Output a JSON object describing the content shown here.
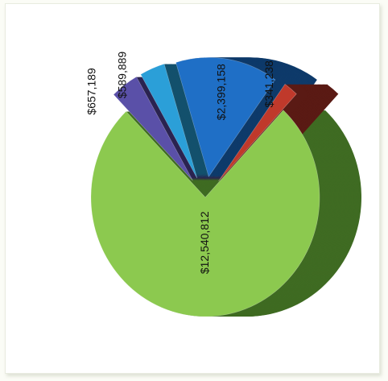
{
  "chart_data": {
    "type": "pie",
    "categories": [
      "",
      "",
      "",
      "",
      ""
    ],
    "values": [
      12540812,
      657189,
      589889,
      2399158,
      341238
    ],
    "labels": [
      "$12,540,812",
      "$657,189",
      "$589,889",
      "$2,399,158",
      "$341,238"
    ],
    "colors": [
      "#8cc94f",
      "#5a50a8",
      "#2b9fd8",
      "#1f6fc6",
      "#c0392b"
    ],
    "side_colors": [
      "#3f6b22",
      "#2a2350",
      "#13506c",
      "#0e3a6a",
      "#5a1a14"
    ],
    "exploded": [
      false,
      true,
      true,
      true,
      true
    ],
    "three_d": true,
    "rotated": "90deg clockwise",
    "legend": "none",
    "title": ""
  }
}
